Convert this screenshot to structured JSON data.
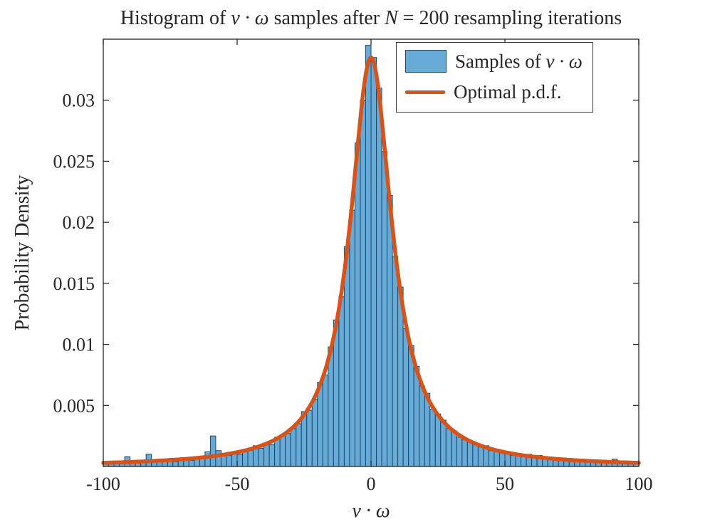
{
  "figure": {
    "title": {
      "pre": "Histogram of ",
      "math1": "v · ω",
      "mid": " samples after ",
      "math2": "N",
      "post": " = 200 resampling iterations"
    },
    "xlabel": "v · ω",
    "ylabel": "Probability Density"
  },
  "legend": {
    "items": [
      {
        "type": "patch",
        "label_pre": "Samples of ",
        "label_math": "v · ω"
      },
      {
        "type": "line",
        "label": "Optimal p.d.f."
      }
    ]
  },
  "chart_data": {
    "type": "bar",
    "subtype": "histogram-with-pdf-overlay",
    "title": "Histogram of v · ω samples after N = 200 resampling iterations",
    "xlabel": "v · ω",
    "ylabel": "Probability Density",
    "xlim": [
      -100,
      100
    ],
    "ylim": [
      0,
      0.035
    ],
    "x_ticks": [
      -100,
      -50,
      0,
      50,
      100
    ],
    "x_tick_labels": [
      "-100",
      "-50",
      "0",
      "50",
      "100"
    ],
    "y_ticks": [
      0.005,
      0.01,
      0.015,
      0.02,
      0.025,
      0.03
    ],
    "y_tick_labels": [
      "0.005",
      "0.01",
      "0.015",
      "0.02",
      "0.025",
      "0.03"
    ],
    "grid": false,
    "legend_position": "top-right-inside",
    "bin_start": -100,
    "bin_width": 2,
    "bin_densities": [
      0.0004,
      0.0002,
      0.0004,
      0.0003,
      0.0008,
      0.0004,
      0.0003,
      0.0005,
      0.001,
      0.0005,
      0.0004,
      0.0006,
      0.0005,
      0.0004,
      0.0007,
      0.0006,
      0.0005,
      0.0008,
      0.0007,
      0.0012,
      0.0025,
      0.0013,
      0.001,
      0.0009,
      0.0011,
      0.001,
      0.0014,
      0.0013,
      0.0017,
      0.0015,
      0.0019,
      0.0018,
      0.0024,
      0.0026,
      0.0027,
      0.0031,
      0.0035,
      0.0045,
      0.0046,
      0.0055,
      0.0069,
      0.0075,
      0.0098,
      0.012,
      0.0139,
      0.018,
      0.021,
      0.0265,
      0.03,
      0.0345,
      0.0335,
      0.031,
      0.0258,
      0.0222,
      0.0172,
      0.0147,
      0.0113,
      0.0099,
      0.0082,
      0.0066,
      0.006,
      0.0047,
      0.0043,
      0.0038,
      0.0031,
      0.0029,
      0.0024,
      0.0022,
      0.0021,
      0.0018,
      0.0016,
      0.0017,
      0.0013,
      0.0014,
      0.0011,
      0.0012,
      0.0009,
      0.001,
      0.0008,
      0.001,
      0.0007,
      0.0009,
      0.0008,
      0.0006,
      0.0007,
      0.0005,
      0.0006,
      0.0004,
      0.0006,
      0.0005,
      0.0004,
      0.0005,
      0.0003,
      0.0005,
      0.0004,
      0.0006,
      0.0003,
      0.0004,
      0.0002,
      0.0003
    ],
    "curve": {
      "name": "Optimal p.d.f.",
      "distribution": "cauchy",
      "location": 0,
      "scale": 9.5,
      "peak_density": 0.0335
    },
    "colors": {
      "bar_fill": "#66aad7",
      "bar_edge": "#1d4868",
      "curve": "#d95319",
      "axis": "#262626",
      "text": "#262626",
      "background": "#ffffff"
    }
  }
}
